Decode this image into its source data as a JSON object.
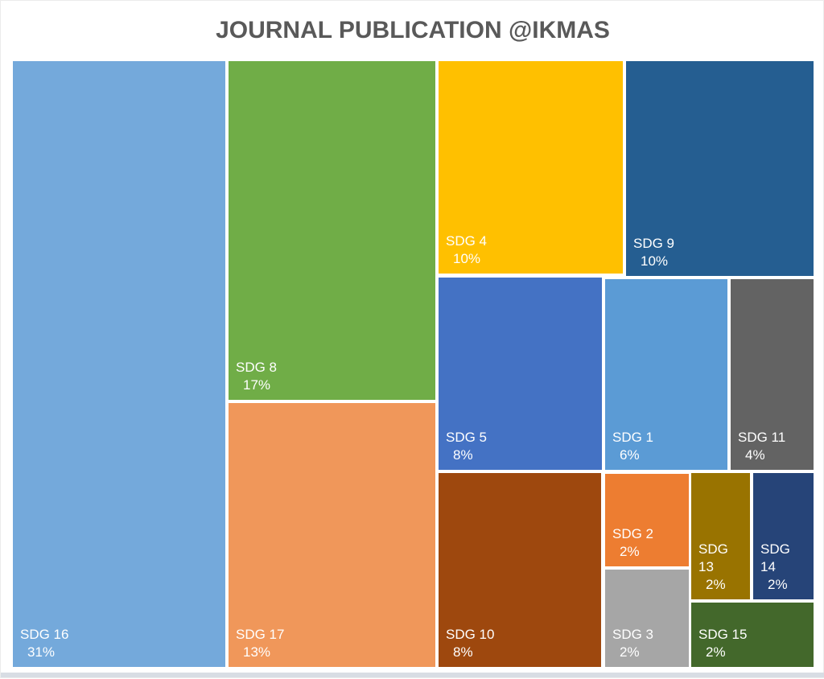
{
  "title": "JOURNAL PUBLICATION @IKMAS",
  "title_color": "#595959",
  "chart_data": {
    "type": "treemap",
    "title": "JOURNAL PUBLICATION @IKMAS",
    "unit": "percent",
    "legend": "none",
    "label_style": "category name + percentage, white text, bottom-left of each tile",
    "categories": [
      "SDG 16",
      "SDG 8",
      "SDG 17",
      "SDG 4",
      "SDG 9",
      "SDG 5",
      "SDG 1",
      "SDG 11",
      "SDG 10",
      "SDG 2",
      "SDG 3",
      "SDG 13",
      "SDG 14",
      "SDG 15"
    ],
    "values": [
      31,
      17,
      13,
      10,
      10,
      8,
      6,
      4,
      8,
      2,
      2,
      2,
      2,
      2
    ],
    "items": [
      {
        "name": "SDG 16",
        "value": 31,
        "pct_label": "31%",
        "color": "#74a9db"
      },
      {
        "name": "SDG 8",
        "value": 17,
        "pct_label": "17%",
        "color": "#70ad47"
      },
      {
        "name": "SDG 17",
        "value": 13,
        "pct_label": "13%",
        "color": "#f0975a"
      },
      {
        "name": "SDG 4",
        "value": 10,
        "pct_label": "10%",
        "color": "#ffc000"
      },
      {
        "name": "SDG 9",
        "value": 10,
        "pct_label": "10%",
        "color": "#255e91"
      },
      {
        "name": "SDG 5",
        "value": 8,
        "pct_label": "8%",
        "color": "#4472c4"
      },
      {
        "name": "SDG 1",
        "value": 6,
        "pct_label": "6%",
        "color": "#5b9bd5"
      },
      {
        "name": "SDG 11",
        "value": 4,
        "pct_label": "4%",
        "color": "#636363"
      },
      {
        "name": "SDG 10",
        "value": 8,
        "pct_label": "8%",
        "color": "#9e480e"
      },
      {
        "name": "SDG 2",
        "value": 2,
        "pct_label": "2%",
        "color": "#ed7d31"
      },
      {
        "name": "SDG 3",
        "value": 2,
        "pct_label": "2%",
        "color": "#a6a6a6"
      },
      {
        "name": "SDG 13",
        "value": 2,
        "pct_label": "2%",
        "color": "#997300"
      },
      {
        "name": "SDG 14",
        "value": 2,
        "pct_label": "2%",
        "color": "#264478"
      },
      {
        "name": "SDG 15",
        "value": 2,
        "pct_label": "2%",
        "color": "#43682b"
      }
    ]
  }
}
